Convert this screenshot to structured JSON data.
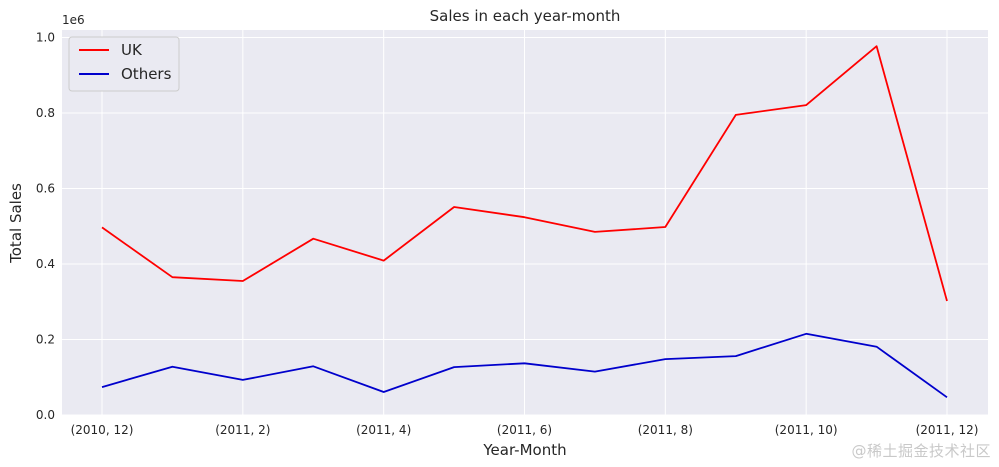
{
  "chart_data": {
    "type": "line",
    "title": "Sales in each year-month",
    "xlabel": "Year-Month",
    "ylabel": "Total Sales",
    "y_offset_label": "1e6",
    "x": [
      "(2010, 12)",
      "(2011, 1)",
      "(2011, 2)",
      "(2011, 3)",
      "(2011, 4)",
      "(2011, 5)",
      "(2011, 6)",
      "(2011, 7)",
      "(2011, 8)",
      "(2011, 9)",
      "(2011, 10)",
      "(2011, 11)",
      "(2011, 12)"
    ],
    "x_tick_labels": [
      "(2010, 12)",
      "(2011, 2)",
      "(2011, 4)",
      "(2011, 6)",
      "(2011, 8)",
      "(2011, 10)",
      "(2011, 12)"
    ],
    "x_tick_indices": [
      0,
      2,
      4,
      6,
      8,
      10,
      12
    ],
    "y_ticks": [
      "0.0",
      "0.2",
      "0.4",
      "0.6",
      "0.8",
      "1.0"
    ],
    "y_tick_values": [
      0,
      0.2,
      0.4,
      0.6,
      0.8,
      1.0
    ],
    "ylim": [
      0,
      1.02
    ],
    "grid": true,
    "legend_position": "top-left",
    "series": [
      {
        "name": "UK",
        "color": "#ff0000",
        "values": [
          0.497,
          0.365,
          0.355,
          0.467,
          0.409,
          0.551,
          0.524,
          0.485,
          0.498,
          0.795,
          0.821,
          0.977,
          0.302
        ]
      },
      {
        "name": "Others",
        "color": "#0000cc",
        "values": [
          0.074,
          0.128,
          0.093,
          0.129,
          0.061,
          0.127,
          0.137,
          0.115,
          0.148,
          0.156,
          0.215,
          0.181,
          0.047
        ]
      }
    ]
  },
  "watermark": "@稀土掘金技术社区",
  "colors": {
    "plot_background": "#eaeaf2",
    "grid": "#ffffff",
    "text": "#262626"
  }
}
